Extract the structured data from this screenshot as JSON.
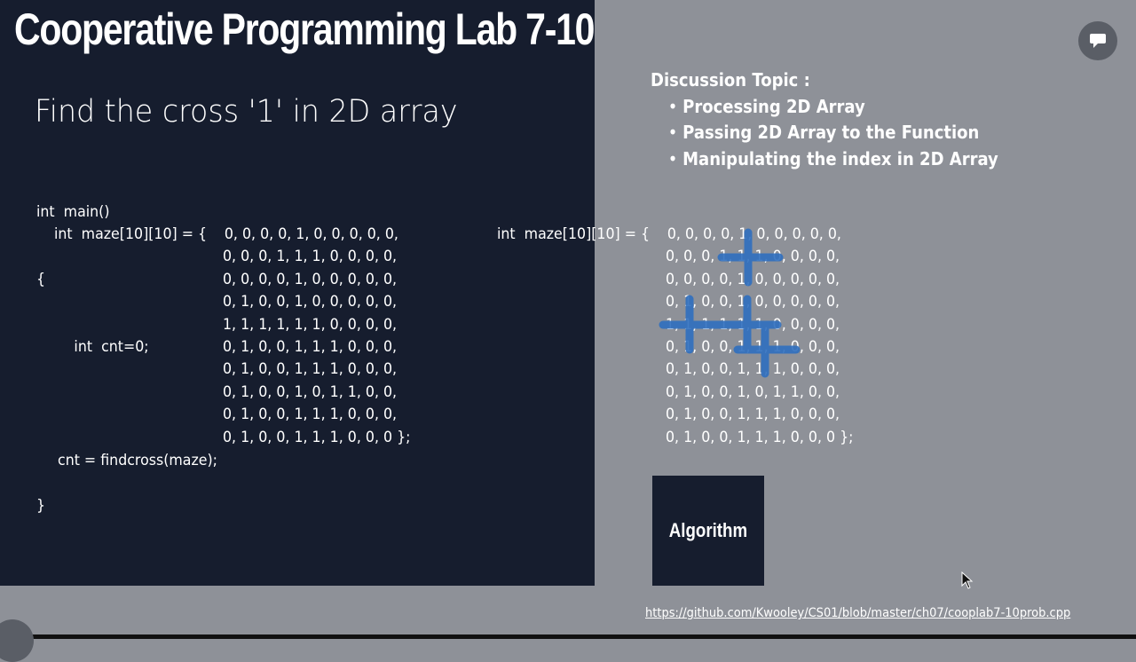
{
  "title": "Cooperative Programming Lab 7-10",
  "subtitle": "Find the cross '1' in 2D array",
  "code": {
    "lines_before": [
      "int  main()",
      "{",
      "    int  cnt=0;"
    ],
    "maze_decl": "int  maze[10][10] = {",
    "maze_rows": [
      "0, 0, 0, 0, 1, 0, 0, 0, 0, 0,",
      "0, 0, 0, 1, 1, 1, 0, 0, 0, 0,",
      "0, 0, 0, 0, 1, 0, 0, 0, 0, 0,",
      "0, 1, 0, 0, 1, 0, 0, 0, 0, 0,",
      "1, 1, 1, 1, 1, 1, 0, 0, 0, 0,",
      "0, 1, 0, 0, 1, 1, 1, 0, 0, 0,",
      "0, 1, 0, 0, 1, 1, 1, 0, 0, 0,",
      "0, 1, 0, 0, 1, 0, 1, 1, 0, 0,",
      "0, 1, 0, 0, 1, 1, 1, 0, 0, 0,",
      "0, 1, 0, 0, 1, 1, 1, 0, 0, 0 };"
    ],
    "call_line": "cnt = findcross(maze);",
    "closing": "}"
  },
  "discussion": {
    "heading": "Discussion Topic :",
    "items": [
      "Processing 2D Array",
      "Passing 2D Array to the Function",
      "Manipulating the index in 2D Array"
    ]
  },
  "algorithm_button": "Algorithm",
  "link": "https://github.com/Kwooley/CS01/blob/master/ch07/cooplab7-10prob.cpp",
  "icons": {
    "chat": "chat-bubble-icon",
    "back": "back-arrow-icon",
    "cursor": "mouse-cursor-icon"
  },
  "colors": {
    "dark_panel": "#161d2e",
    "gray_panel": "#8e9198",
    "annotation": "#2f6fbf"
  }
}
